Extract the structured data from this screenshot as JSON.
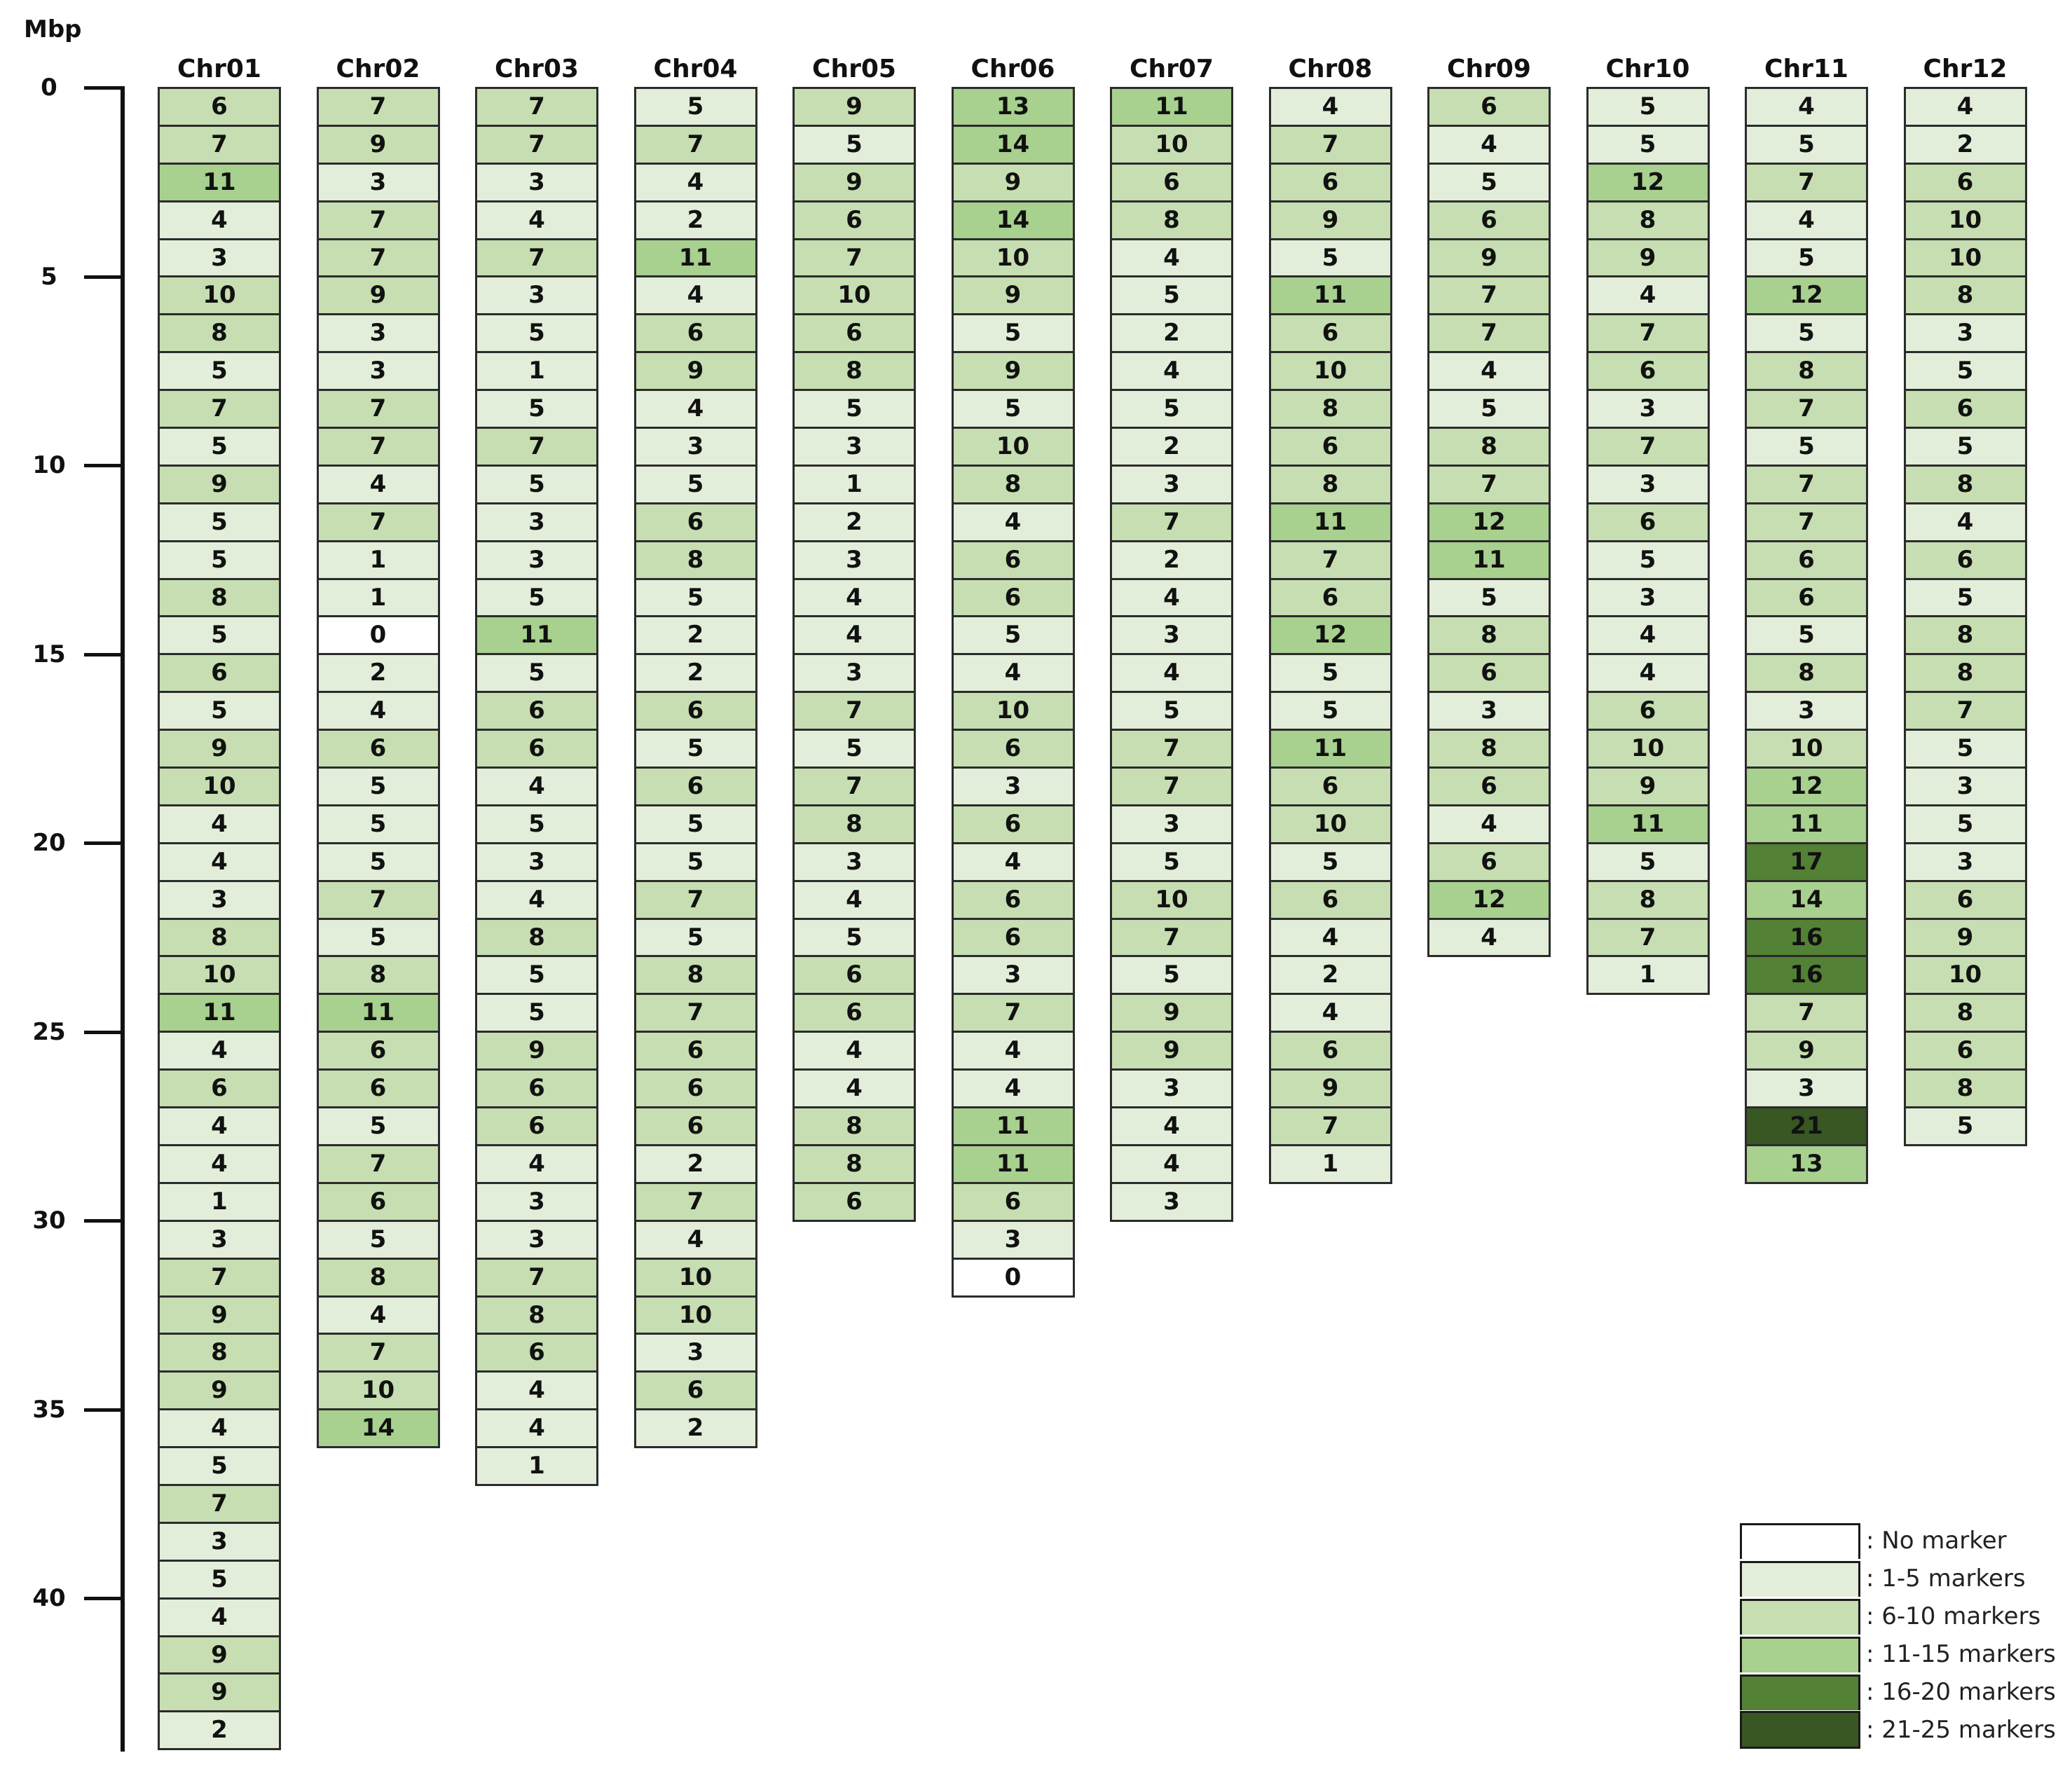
{
  "chart_data": {
    "type": "heatmap",
    "title": "",
    "ylabel": "Mbp",
    "xlabel": "",
    "ylim": [
      0,
      44
    ],
    "y_ticks": [
      0,
      5,
      10,
      15,
      20,
      25,
      30,
      35,
      40
    ],
    "bin_size_mbp": 1,
    "categories": [
      "Chr01",
      "Chr02",
      "Chr03",
      "Chr04",
      "Chr05",
      "Chr06",
      "Chr07",
      "Chr08",
      "Chr09",
      "Chr10",
      "Chr11",
      "Chr12"
    ],
    "series": [
      {
        "name": "Chr01",
        "values": [
          6,
          7,
          11,
          4,
          3,
          10,
          8,
          5,
          7,
          5,
          9,
          5,
          5,
          8,
          5,
          6,
          5,
          9,
          10,
          4,
          4,
          3,
          8,
          10,
          11,
          4,
          6,
          4,
          4,
          1,
          3,
          7,
          9,
          8,
          9,
          4,
          5,
          7,
          3,
          5,
          4,
          9,
          9,
          2
        ]
      },
      {
        "name": "Chr02",
        "values": [
          7,
          9,
          3,
          7,
          7,
          9,
          3,
          3,
          7,
          7,
          4,
          7,
          1,
          1,
          0,
          2,
          4,
          6,
          5,
          5,
          5,
          7,
          5,
          8,
          11,
          6,
          6,
          5,
          7,
          6,
          5,
          8,
          4,
          7,
          10,
          14
        ]
      },
      {
        "name": "Chr03",
        "values": [
          7,
          7,
          3,
          4,
          7,
          3,
          5,
          1,
          5,
          7,
          5,
          3,
          3,
          5,
          11,
          5,
          6,
          6,
          4,
          5,
          3,
          4,
          8,
          5,
          5,
          9,
          6,
          6,
          4,
          3,
          3,
          7,
          8,
          6,
          4,
          4,
          1
        ]
      },
      {
        "name": "Chr04",
        "values": [
          5,
          7,
          4,
          2,
          11,
          4,
          6,
          9,
          4,
          3,
          5,
          6,
          8,
          5,
          2,
          2,
          6,
          5,
          6,
          5,
          5,
          7,
          5,
          8,
          7,
          6,
          6,
          6,
          2,
          7,
          4,
          10,
          10,
          3,
          6,
          2
        ]
      },
      {
        "name": "Chr05",
        "values": [
          9,
          5,
          9,
          6,
          7,
          10,
          6,
          8,
          5,
          3,
          1,
          2,
          3,
          4,
          4,
          3,
          7,
          5,
          7,
          8,
          3,
          4,
          5,
          6,
          6,
          4,
          4,
          8,
          8,
          6
        ]
      },
      {
        "name": "Chr06",
        "values": [
          13,
          14,
          9,
          14,
          10,
          9,
          5,
          9,
          5,
          10,
          8,
          4,
          6,
          6,
          5,
          4,
          10,
          6,
          3,
          6,
          4,
          6,
          6,
          3,
          7,
          4,
          4,
          11,
          11,
          6,
          3,
          0
        ]
      },
      {
        "name": "Chr07",
        "values": [
          11,
          10,
          6,
          8,
          4,
          5,
          2,
          4,
          5,
          2,
          3,
          7,
          2,
          4,
          3,
          4,
          5,
          7,
          7,
          3,
          5,
          10,
          7,
          5,
          9,
          9,
          3,
          4,
          4,
          3
        ]
      },
      {
        "name": "Chr08",
        "values": [
          4,
          7,
          6,
          9,
          5,
          11,
          6,
          10,
          8,
          6,
          8,
          11,
          7,
          6,
          12,
          5,
          5,
          11,
          6,
          10,
          5,
          6,
          4,
          2,
          4,
          6,
          9,
          7,
          1
        ]
      },
      {
        "name": "Chr09",
        "values": [
          6,
          4,
          5,
          6,
          9,
          7,
          7,
          4,
          5,
          8,
          7,
          12,
          11,
          5,
          8,
          6,
          3,
          8,
          6,
          4,
          6,
          12,
          4
        ]
      },
      {
        "name": "Chr10",
        "values": [
          5,
          5,
          12,
          8,
          9,
          4,
          7,
          6,
          3,
          7,
          3,
          6,
          5,
          3,
          4,
          4,
          6,
          10,
          9,
          11,
          5,
          8,
          7,
          1
        ]
      },
      {
        "name": "Chr11",
        "values": [
          4,
          5,
          7,
          4,
          5,
          12,
          5,
          8,
          7,
          5,
          7,
          7,
          6,
          6,
          5,
          8,
          3,
          10,
          12,
          11,
          17,
          14,
          16,
          16,
          7,
          9,
          3,
          21,
          13
        ]
      },
      {
        "name": "Chr12",
        "values": [
          4,
          2,
          6,
          10,
          10,
          8,
          3,
          5,
          6,
          5,
          8,
          4,
          6,
          5,
          8,
          8,
          7,
          5,
          3,
          5,
          3,
          6,
          9,
          10,
          8,
          6,
          8,
          5
        ]
      }
    ],
    "legend": [
      {
        "label": ": No marker",
        "min": 0,
        "max": 0,
        "color": "#ffffff"
      },
      {
        "label": ": 1-5 markers",
        "min": 1,
        "max": 5,
        "color": "#e2eed9"
      },
      {
        "label": ": 6-10 markers",
        "min": 6,
        "max": 10,
        "color": "#c6deb1"
      },
      {
        "label": ": 11-15 markers",
        "min": 11,
        "max": 15,
        "color": "#a8d08e"
      },
      {
        "label": ": 16-20 markers",
        "min": 16,
        "max": 20,
        "color": "#538135"
      },
      {
        "label": ": 21-25 markers",
        "min": 21,
        "max": 25,
        "color": "#385723"
      }
    ],
    "legend_position": "bottom-right"
  }
}
